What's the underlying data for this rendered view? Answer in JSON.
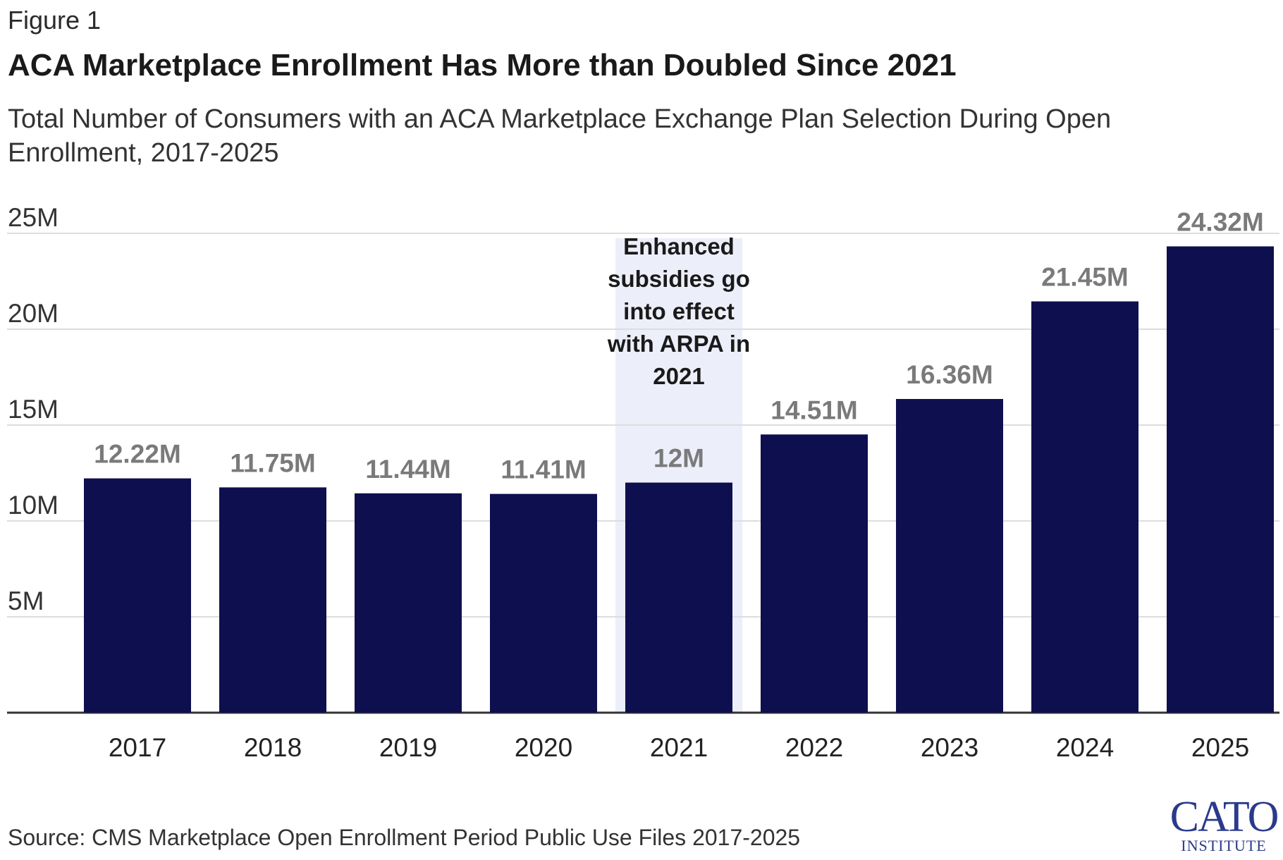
{
  "figure_label": "Figure 1",
  "title": "ACA Marketplace Enrollment Has More than Doubled Since 2021",
  "subtitle": "Total Number of Consumers with an ACA Marketplace Exchange Plan Selection During Open Enrollment, 2017-2025",
  "source": "Source: CMS Marketplace Open Enrollment Period Public Use Files 2017-2025",
  "logo": {
    "main": "CATO",
    "sub": "INSTITUTE"
  },
  "colors": {
    "bar": "#0e0f4e",
    "value_label": "#7a7a7a",
    "highlight": "#eceefa",
    "grid": "#dddddd"
  },
  "chart_data": {
    "type": "bar",
    "categories": [
      "2017",
      "2018",
      "2019",
      "2020",
      "2021",
      "2022",
      "2023",
      "2024",
      "2025"
    ],
    "values": [
      12.22,
      11.75,
      11.44,
      11.41,
      12.0,
      14.51,
      16.36,
      21.45,
      24.32
    ],
    "value_labels": [
      "12.22M",
      "11.75M",
      "11.44M",
      "11.41M",
      "12M",
      "14.51M",
      "16.36M",
      "21.45M",
      "24.32M"
    ],
    "y_ticks": [
      5,
      10,
      15,
      20,
      25
    ],
    "y_tick_labels": [
      "5M",
      "10M",
      "15M",
      "20M",
      "25M"
    ],
    "ylim": [
      0,
      25
    ],
    "grid": true,
    "highlight_category": "2021",
    "annotation": {
      "category": "2021",
      "lines": [
        "Enhanced",
        "subsidies go",
        "into effect",
        "with ARPA in",
        "2021"
      ]
    }
  }
}
